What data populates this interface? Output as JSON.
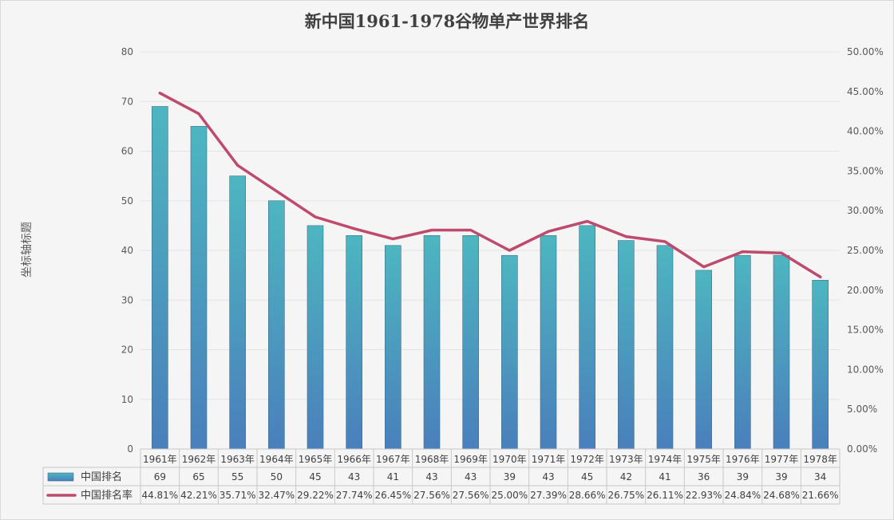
{
  "chart_data": {
    "type": "bar",
    "title": "新中国1961-1978谷物单产世界排名",
    "ylabel": "坐标轴标题",
    "ylim": [
      0,
      80
    ],
    "yticks": [
      "0",
      "10",
      "20",
      "30",
      "40",
      "50",
      "60",
      "70",
      "80"
    ],
    "y2lim": [
      0,
      0.5
    ],
    "y2ticks": [
      "0.00%",
      "5.00%",
      "10.00%",
      "15.00%",
      "20.00%",
      "25.00%",
      "30.00%",
      "35.00%",
      "40.00%",
      "45.00%",
      "50.00%"
    ],
    "categories": [
      "1961年",
      "1962年",
      "1963年",
      "1964年",
      "1965年",
      "1966年",
      "1967年",
      "1968年",
      "1969年",
      "1970年",
      "1971年",
      "1972年",
      "1973年",
      "1974年",
      "1975年",
      "1976年",
      "1977年",
      "1978年"
    ],
    "series": [
      {
        "name": "中国排名",
        "type": "bar",
        "axis": "left",
        "color_top": "#4db6c0",
        "color_bottom": "#4a7fbc",
        "values": [
          69,
          65,
          55,
          50,
          45,
          43,
          41,
          43,
          43,
          39,
          43,
          45,
          42,
          41,
          36,
          39,
          39,
          34
        ]
      },
      {
        "name": "中国排名率",
        "type": "line",
        "axis": "right",
        "color": "#be4b6e",
        "values": [
          0.4481,
          0.4221,
          0.3571,
          0.3247,
          0.2922,
          0.2774,
          0.2645,
          0.2756,
          0.2756,
          0.25,
          0.2739,
          0.2866,
          0.2675,
          0.2611,
          0.2293,
          0.2484,
          0.2468,
          0.2166
        ],
        "labels": [
          "44.81%",
          "42.21%",
          "35.71%",
          "32.47%",
          "29.22%",
          "27.74%",
          "26.45%",
          "27.56%",
          "27.56%",
          "25.00%",
          "27.39%",
          "28.66%",
          "26.75%",
          "26.11%",
          "22.93%",
          "24.84%",
          "24.68%",
          "21.66%"
        ]
      }
    ],
    "grid": true,
    "legend": "data-table"
  }
}
